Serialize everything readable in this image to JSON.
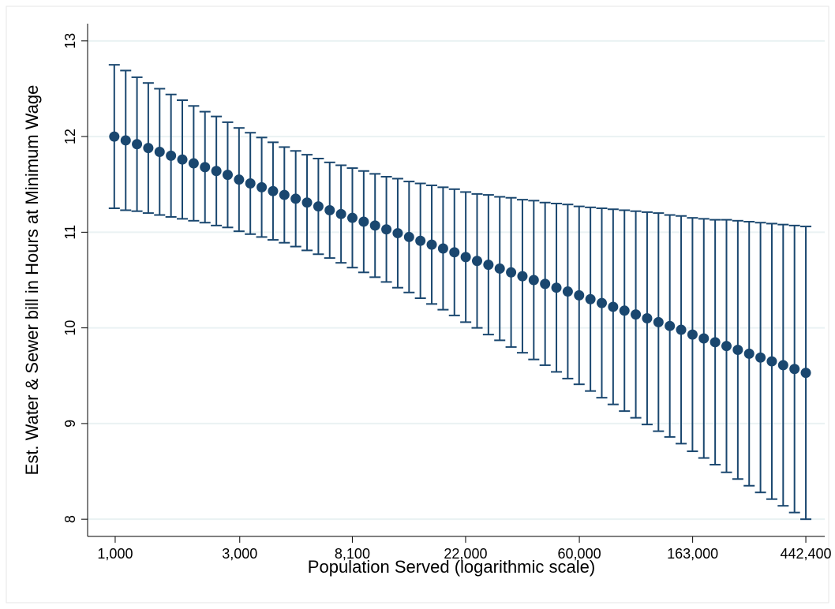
{
  "chart_data": {
    "type": "errorbar",
    "x_label": "Population Served (logarithmic scale)",
    "y_label": "Est. Water & Sewer bill in Hours at Minimum Wage",
    "x_log_scale": true,
    "grid": true,
    "x": [
      992,
      1097,
      1212,
      1339,
      1480,
      1636,
      1808,
      1998,
      2208,
      2441,
      2697,
      2981,
      3294,
      3641,
      4024,
      4447,
      4915,
      5432,
      6003,
      6634,
      7332,
      8103,
      8955,
      9897,
      10938,
      12088,
      13360,
      14765,
      16318,
      18034,
      19930,
      22026,
      24343,
      26903,
      29733,
      32860,
      36316,
      40135,
      44356,
      49021,
      54176,
      59874,
      66171,
      73130,
      80822,
      89322,
      98716,
      109097,
      120572,
      133252,
      147267,
      162755,
      179872,
      198789,
      219696,
      242802,
      268337,
      296559,
      327748,
      362217,
      400312,
      442413
    ],
    "series": [
      {
        "color": "#1a476f",
        "values": [
          12.0,
          11.96,
          11.92,
          11.88,
          11.84,
          11.8,
          11.76,
          11.72,
          11.68,
          11.64,
          11.6,
          11.55,
          11.51,
          11.47,
          11.43,
          11.39,
          11.35,
          11.31,
          11.27,
          11.23,
          11.19,
          11.15,
          11.11,
          11.07,
          11.03,
          10.99,
          10.95,
          10.91,
          10.87,
          10.83,
          10.79,
          10.74,
          10.7,
          10.66,
          10.62,
          10.58,
          10.54,
          10.5,
          10.46,
          10.42,
          10.38,
          10.34,
          10.3,
          10.26,
          10.22,
          10.18,
          10.14,
          10.1,
          10.06,
          10.02,
          9.98,
          9.93,
          9.89,
          9.85,
          9.81,
          9.77,
          9.73,
          9.69,
          9.65,
          9.61,
          9.57,
          9.53
        ],
        "errors": [
          0.75,
          0.73,
          0.7,
          0.68,
          0.66,
          0.64,
          0.62,
          0.6,
          0.58,
          0.57,
          0.55,
          0.54,
          0.53,
          0.52,
          0.51,
          0.5,
          0.5,
          0.5,
          0.5,
          0.5,
          0.51,
          0.52,
          0.53,
          0.54,
          0.55,
          0.57,
          0.58,
          0.6,
          0.62,
          0.64,
          0.66,
          0.68,
          0.7,
          0.73,
          0.75,
          0.78,
          0.8,
          0.83,
          0.85,
          0.88,
          0.91,
          0.93,
          0.96,
          0.99,
          1.02,
          1.05,
          1.08,
          1.11,
          1.14,
          1.16,
          1.19,
          1.22,
          1.25,
          1.28,
          1.32,
          1.35,
          1.38,
          1.41,
          1.44,
          1.47,
          1.5,
          1.53
        ]
      }
    ],
    "xlim": [
      784,
      522700
    ],
    "ylim": [
      7.82,
      13.18
    ],
    "xticks": [
      {
        "value": 1000,
        "label": "1,000"
      },
      {
        "value": 3000,
        "label": "3,000"
      },
      {
        "value": 8100,
        "label": "8,100"
      },
      {
        "value": 22000,
        "label": "22,000"
      },
      {
        "value": 60000,
        "label": "60,000"
      },
      {
        "value": 163000,
        "label": "163,000"
      },
      {
        "value": 442400,
        "label": "442,400"
      }
    ],
    "yticks": [
      8,
      9,
      10,
      11,
      12,
      13
    ]
  }
}
